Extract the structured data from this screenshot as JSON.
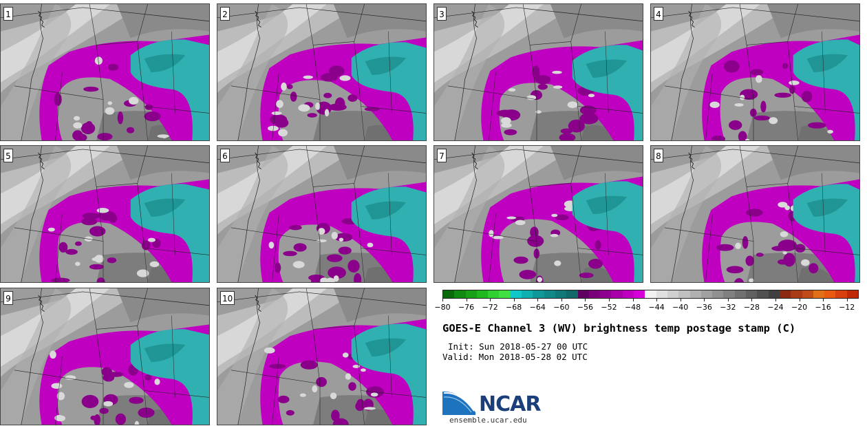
{
  "panels": [
    {
      "label": "1"
    },
    {
      "label": "2"
    },
    {
      "label": "3"
    },
    {
      "label": "4"
    },
    {
      "label": "5"
    },
    {
      "label": "6"
    },
    {
      "label": "7"
    },
    {
      "label": "8"
    },
    {
      "label": "9"
    },
    {
      "label": "10"
    }
  ],
  "title": "GOES-E Channel 3 (WV) brightness temp postage stamp (C)",
  "init": "Init: Sun 2018-05-27 00 UTC",
  "valid": "Valid: Mon 2018-05-28 02 UTC",
  "colorbar": {
    "min": -80,
    "max": -10,
    "tick_labels": [
      "−80",
      "−76",
      "−72",
      "−68",
      "−64",
      "−60",
      "−56",
      "−52",
      "−48",
      "−44",
      "−40",
      "−36",
      "−32",
      "−28",
      "−24",
      "−20",
      "−16",
      "−12"
    ],
    "tick_values": [
      -80,
      -76,
      -72,
      -68,
      -64,
      -60,
      -56,
      -52,
      -48,
      -44,
      -40,
      -36,
      -32,
      -28,
      -24,
      -20,
      -16,
      -12
    ],
    "colors": [
      "#0a6a0a",
      "#108a10",
      "#18a018",
      "#20b820",
      "#30d030",
      "#40e040",
      "#10c8c8",
      "#10b0b0",
      "#109898",
      "#108888",
      "#107878",
      "#106868",
      "#600060",
      "#7a007a",
      "#900090",
      "#a800a8",
      "#c000c0",
      "#d800d8",
      "#f0f0f0",
      "#e0e0e0",
      "#d0d0d0",
      "#c0c0c0",
      "#b0b0b0",
      "#a0a0a0",
      "#909090",
      "#808080",
      "#707070",
      "#606060",
      "#505050",
      "#404040",
      "#8b2a10",
      "#a83a15",
      "#c04a18",
      "#e07018",
      "#e85a10",
      "#d84010",
      "#c02808"
    ]
  },
  "logo": {
    "text": "NCAR",
    "website": "ensemble.ucar.edu",
    "primary_color": "#1b3f7a",
    "accent_color": "#1e73be"
  },
  "map_colors": {
    "cold_cloud": "#c000c0",
    "cold_cloud_dark": "#8a008a",
    "coldest": "#30b0b0",
    "coldest_dark": "#1a8a8a",
    "land_light": "#d8d8d8",
    "land_mid": "#a8a8a8",
    "land_dark": "#707070"
  }
}
